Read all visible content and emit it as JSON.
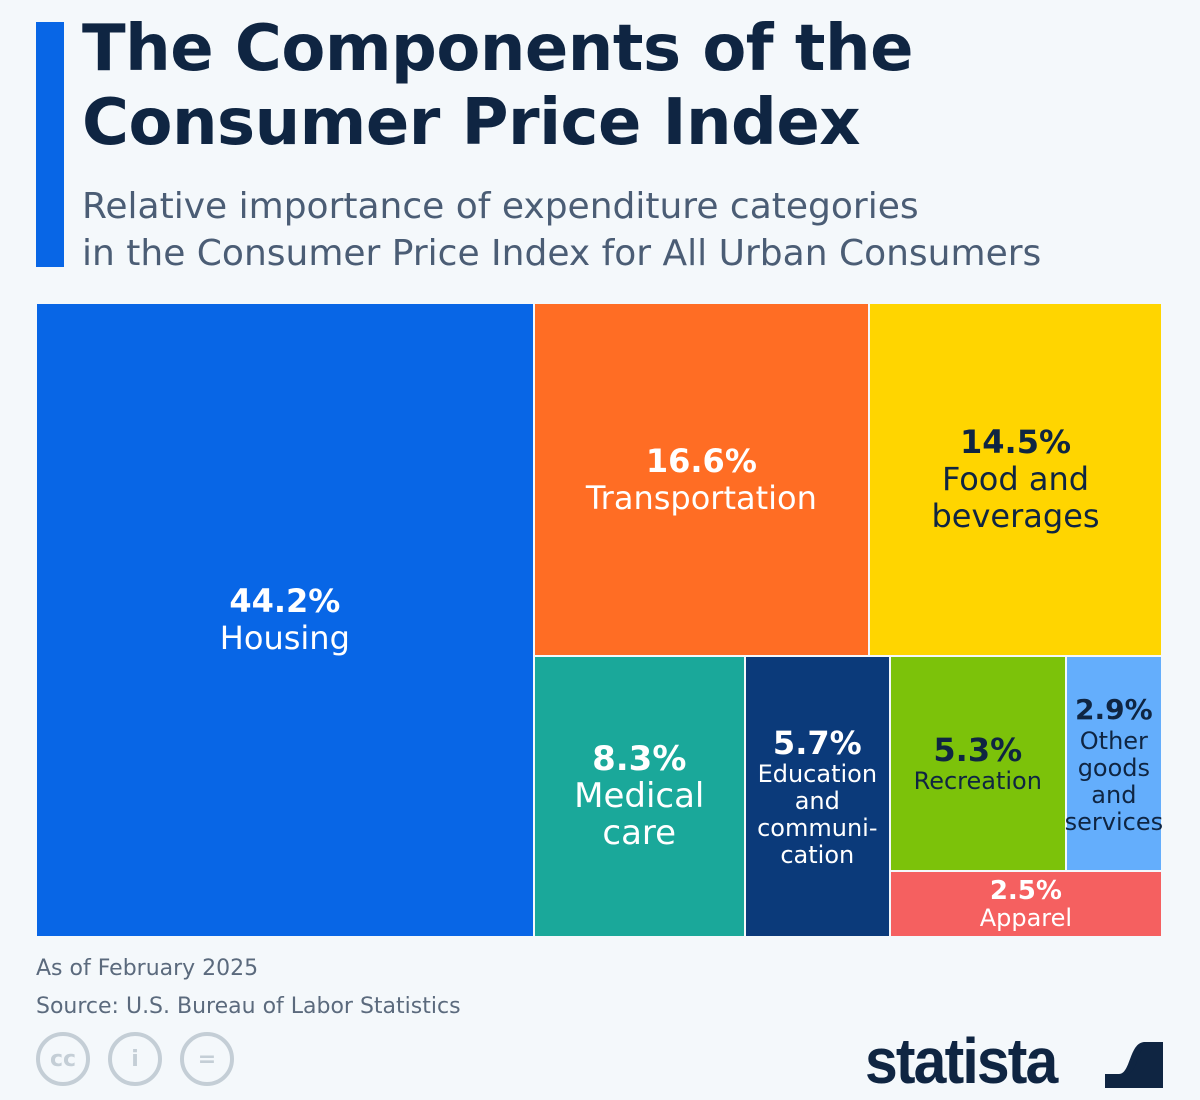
{
  "header": {
    "title": "The Components of the Consumer Price Index",
    "subtitle_line1": "Relative importance of expenditure categories",
    "subtitle_line2": "in the Consumer Price Index for All Urban Consumers"
  },
  "chart_data": {
    "type": "treemap",
    "unit": "%",
    "items": [
      {
        "key": "housing",
        "label": "Housing",
        "value": 44.2,
        "value_label": "44.2%",
        "color": "#0866e6",
        "text_color": "#ffffff"
      },
      {
        "key": "transportation",
        "label": "Transportation",
        "value": 16.6,
        "value_label": "16.6%",
        "color": "#ff6d24",
        "text_color": "#ffffff"
      },
      {
        "key": "food",
        "label": "Food and beverages",
        "value": 14.5,
        "value_label": "14.5%",
        "color": "#ffd500",
        "text_color": "#0f2542"
      },
      {
        "key": "medical",
        "label": "Medical care",
        "value": 8.3,
        "value_label": "8.3%",
        "color": "#1aa89a",
        "text_color": "#ffffff"
      },
      {
        "key": "education",
        "label": "Education and communi-cation",
        "value": 5.7,
        "value_label": "5.7%",
        "color": "#0b3a7a",
        "text_color": "#ffffff"
      },
      {
        "key": "recreation",
        "label": "Recreation",
        "value": 5.3,
        "value_label": "5.3%",
        "color": "#7cc20a",
        "text_color": "#0f2542"
      },
      {
        "key": "other",
        "label": "Other goods and services",
        "value": 2.9,
        "value_label": "2.9%",
        "color": "#64aefc",
        "text_color": "#0f2542"
      },
      {
        "key": "apparel",
        "label": "Apparel",
        "value": 2.5,
        "value_label": "2.5%",
        "color": "#f56060",
        "text_color": "#ffffff"
      }
    ]
  },
  "footer": {
    "date_note": "As of February 2025",
    "source": "Source: U.S. Bureau of Labor Statistics",
    "license_icons": [
      "cc-icon",
      "attribution-icon",
      "no-derivatives-icon"
    ],
    "brand": "statista"
  }
}
